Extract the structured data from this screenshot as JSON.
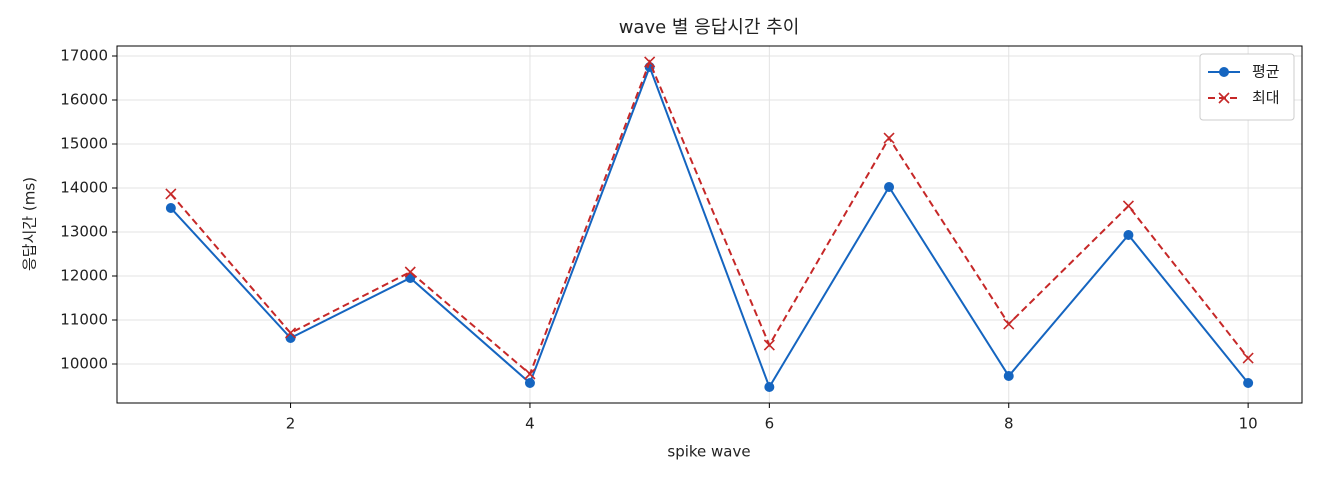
{
  "chart_data": {
    "type": "line",
    "title": "wave 별 응답시간 추이",
    "x_label": "spike wave",
    "y_label": "응답시간 (ms)",
    "x": [
      1,
      2,
      3,
      4,
      5,
      6,
      7,
      8,
      9,
      10
    ],
    "series": [
      {
        "name": "평균",
        "color": "#1565c0",
        "marker": "o",
        "linestyle": "solid",
        "values": [
          13545,
          10591,
          11955,
          9568,
          16750,
          9477,
          14023,
          9727,
          12932,
          9568
        ]
      },
      {
        "name": "최대",
        "color": "#c62828",
        "marker": "x",
        "linestyle": "dashed",
        "values": [
          13864,
          10705,
          12091,
          9773,
          16864,
          10432,
          15136,
          10909,
          13591,
          10136
        ]
      }
    ],
    "xlim": [
      0.55,
      10.45
    ],
    "xticks": [
      2,
      4,
      6,
      8,
      10
    ],
    "ylim": [
      9114,
      17227
    ],
    "yticks": [
      10000,
      11000,
      12000,
      13000,
      14000,
      15000,
      16000,
      17000
    ],
    "grid": true,
    "legend": "upper right"
  }
}
